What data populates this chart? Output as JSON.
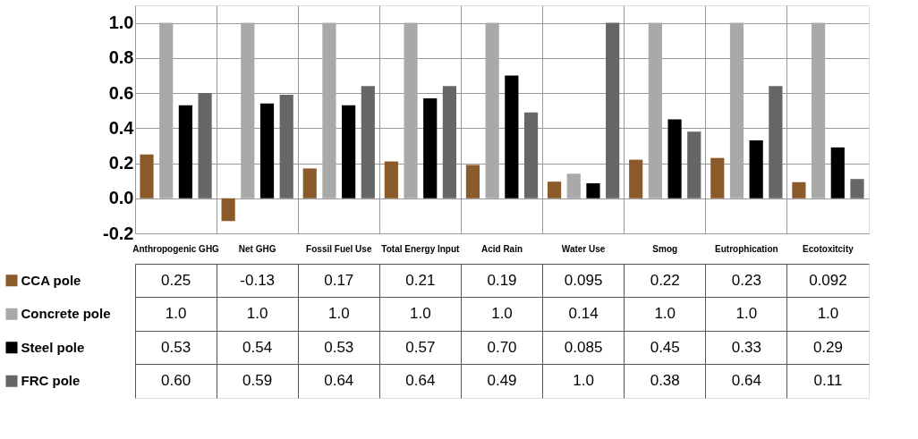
{
  "chart_data": {
    "type": "bar",
    "categories": [
      "Anthropogenic GHG",
      "Net GHG",
      "Fossil Fuel Use",
      "Total Energy Input",
      "Acid Rain",
      "Water Use",
      "Smog",
      "Eutrophication",
      "Ecotoxitcity"
    ],
    "series": [
      {
        "name": "CCA pole",
        "color": "#8b5a2b",
        "values": [
          0.25,
          -0.13,
          0.17,
          0.21,
          0.19,
          0.095,
          0.22,
          0.23,
          0.092
        ],
        "value_labels": [
          "0.25",
          "-0.13",
          "0.17",
          "0.21",
          "0.19",
          "0.095",
          "0.22",
          "0.23",
          "0.092"
        ]
      },
      {
        "name": "Concrete pole",
        "color": "#a9a9a9",
        "values": [
          1.0,
          1.0,
          1.0,
          1.0,
          1.0,
          0.14,
          1.0,
          1.0,
          1.0
        ],
        "value_labels": [
          "1.0",
          "1.0",
          "1.0",
          "1.0",
          "1.0",
          "0.14",
          "1.0",
          "1.0",
          "1.0"
        ]
      },
      {
        "name": "Steel pole",
        "color": "#000000",
        "values": [
          0.53,
          0.54,
          0.53,
          0.57,
          0.7,
          0.085,
          0.45,
          0.33,
          0.29
        ],
        "value_labels": [
          "0.53",
          "0.54",
          "0.53",
          "0.57",
          "0.70",
          "0.085",
          "0.45",
          "0.33",
          "0.29"
        ]
      },
      {
        "name": "FRC pole",
        "color": "#666666",
        "values": [
          0.6,
          0.59,
          0.64,
          0.64,
          0.49,
          1.0,
          0.38,
          0.64,
          0.11
        ],
        "value_labels": [
          "0.60",
          "0.59",
          "0.64",
          "0.64",
          "0.49",
          "1.0",
          "0.38",
          "0.64",
          "0.11"
        ]
      }
    ],
    "ylim": [
      -0.2,
      1.1
    ],
    "yticks": [
      {
        "value": -0.2,
        "label": "-0.2"
      },
      {
        "value": 0,
        "label": "0.0"
      },
      {
        "value": 0.2,
        "label": "0.2"
      },
      {
        "value": 0.4,
        "label": "0.4"
      },
      {
        "value": 0.6,
        "label": "0.6"
      },
      {
        "value": 0.8,
        "label": "0.8"
      },
      {
        "value": 1.0,
        "label": "1.0"
      }
    ],
    "grid": true,
    "legend": "bottom left"
  }
}
